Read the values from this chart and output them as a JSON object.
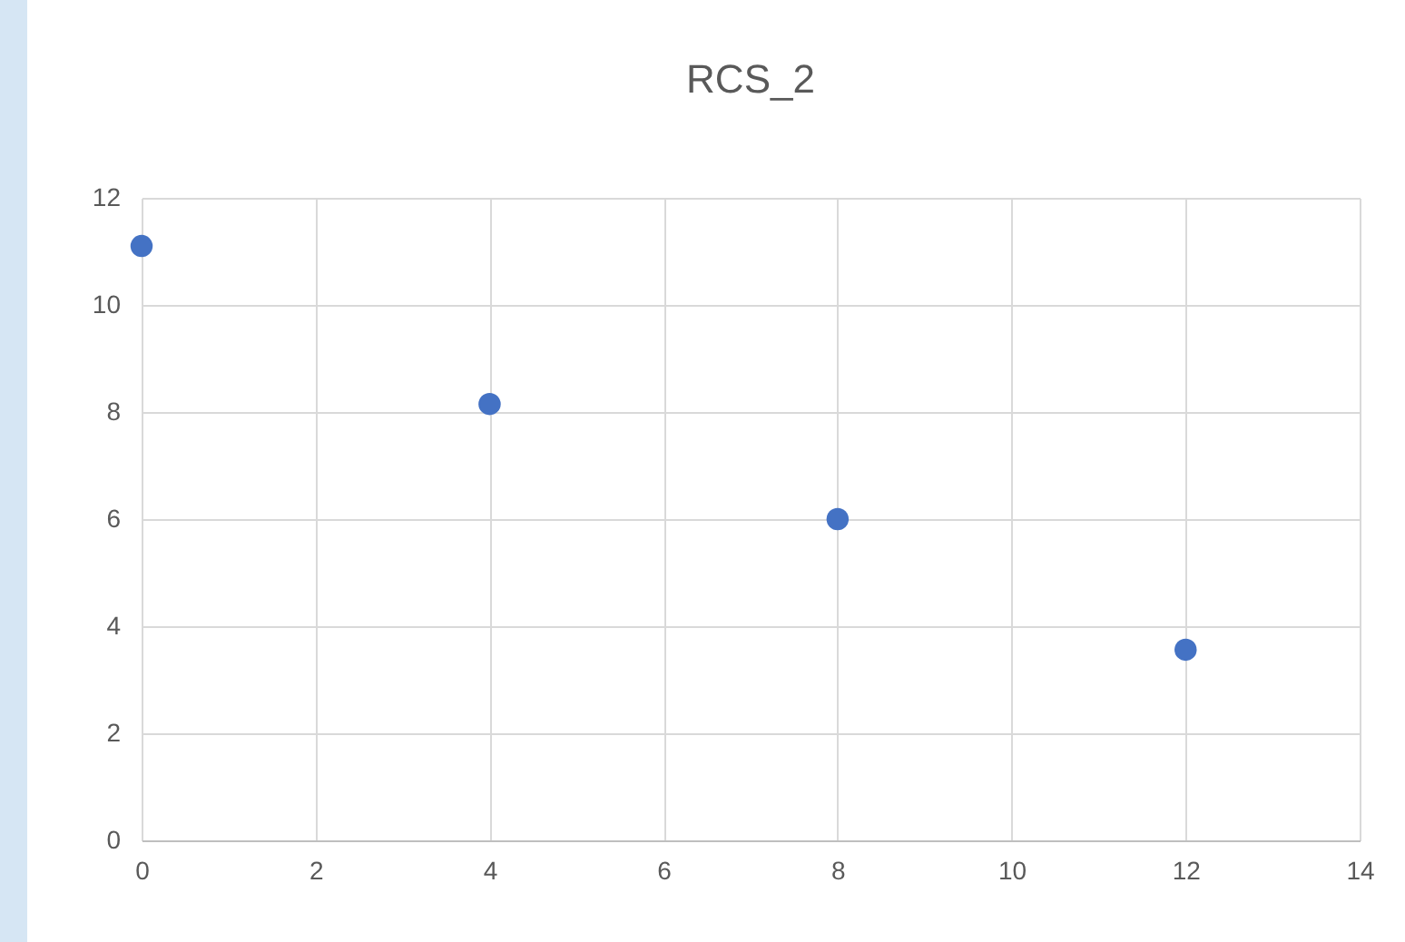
{
  "chart_data": {
    "type": "scatter",
    "title": "RCS_2",
    "x": [
      0,
      4,
      8,
      12
    ],
    "series": [
      {
        "color": "#4472c4",
        "values": [
          11.1,
          8.15,
          6.0,
          3.56
        ]
      }
    ],
    "xlim": [
      0,
      14
    ],
    "xticks": [
      0,
      2,
      4,
      6,
      8,
      10,
      12,
      14
    ],
    "ylim": [
      0,
      12
    ],
    "yticks": [
      0,
      2,
      4,
      6,
      8,
      10,
      12
    ],
    "grid": true,
    "marker": "circle"
  }
}
